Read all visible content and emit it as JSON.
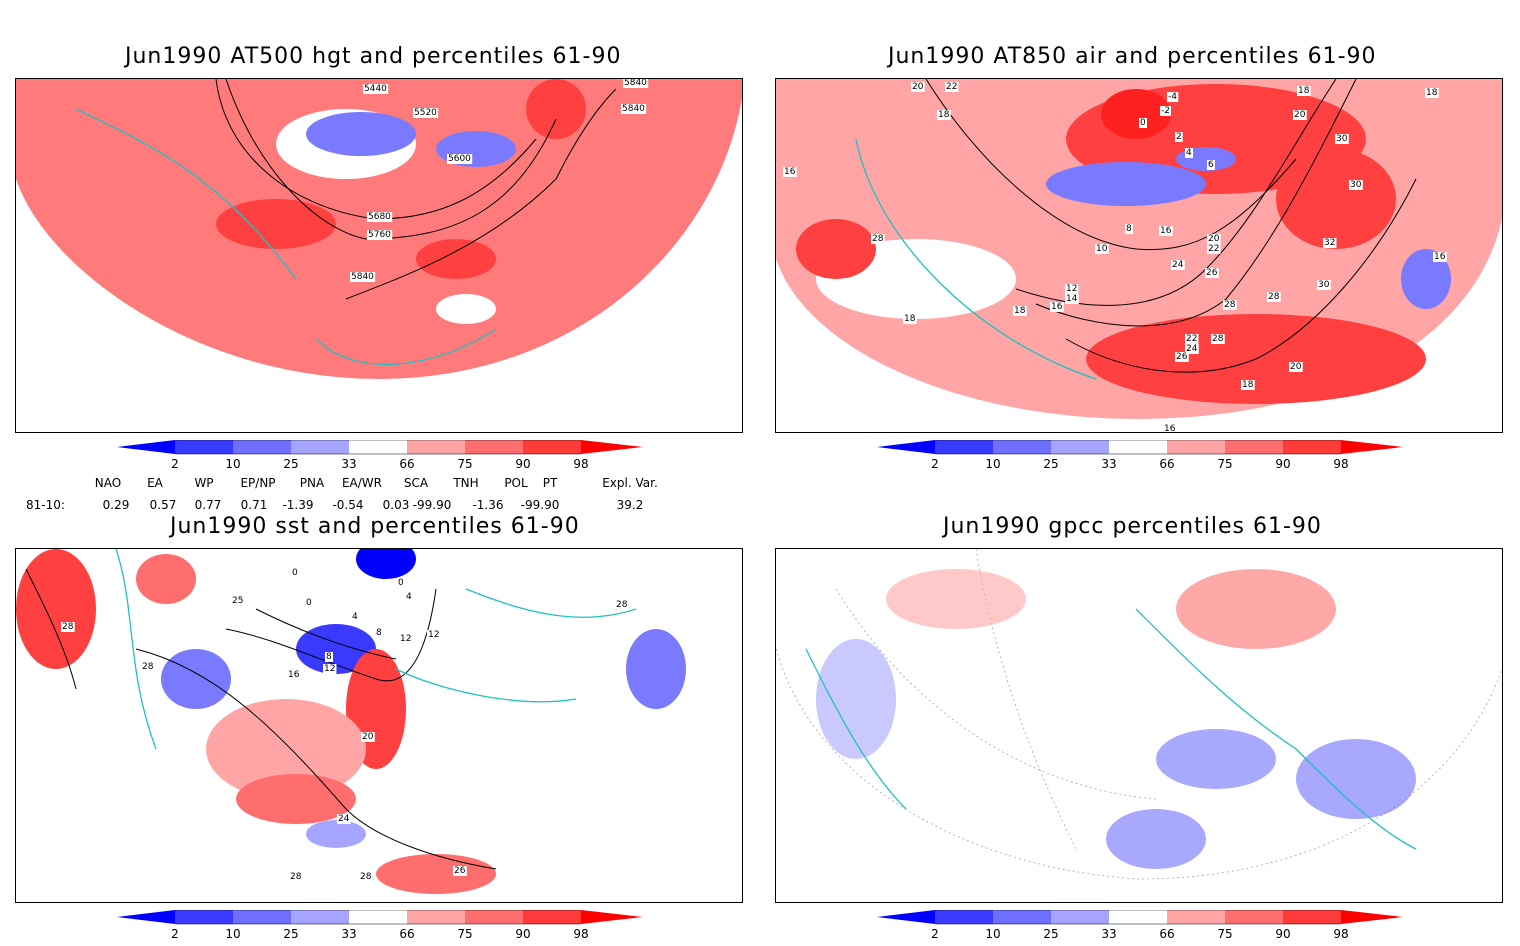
{
  "panels": [
    {
      "id": "hgt",
      "title": "Jun1990 AT500 hgt and percentiles 61-90",
      "contour_labels": [
        "5440",
        "5520",
        "5600",
        "5680",
        "5760",
        "5840",
        "5840",
        "5840"
      ]
    },
    {
      "id": "air",
      "title": "Jun1990 AT850 air and percentiles 61-90",
      "contour_labels": [
        "20",
        "22",
        "18",
        "16",
        "-4",
        "-2",
        "0",
        "2",
        "4",
        "6",
        "8",
        "10",
        "12",
        "14",
        "16",
        "18",
        "20",
        "22",
        "24",
        "26",
        "28",
        "30",
        "30",
        "32",
        "28",
        "18",
        "16",
        "18",
        "16",
        "18",
        "20",
        "22",
        "24",
        "26",
        "28",
        "30",
        "28",
        "20",
        "18",
        "16"
      ]
    },
    {
      "id": "sst",
      "title": "Jun1990 sst and percentiles 61-90",
      "contour_labels": [
        "28",
        "25",
        "0",
        "0",
        "0",
        "4",
        "4",
        "8",
        "12",
        "16",
        "8",
        "12",
        "12",
        "20",
        "28",
        "28",
        "24",
        "28",
        "28",
        "26"
      ]
    },
    {
      "id": "gpcc",
      "title": "Jun1990 gpcc percentiles 61-90",
      "contour_labels": []
    }
  ],
  "colorbar": {
    "ticks": [
      "2",
      "10",
      "25",
      "33",
      "66",
      "75",
      "90",
      "98"
    ],
    "colors": {
      "b98": "#0000ff",
      "b90": "#3a3aff",
      "b75": "#6e6eff",
      "b66": "#a5a5ff",
      "white": "#ffffff",
      "r66": "#ffa5a5",
      "r75": "#ff6e6e",
      "r90": "#ff3a3a",
      "r98": "#ff0000"
    }
  },
  "indices": {
    "headers": [
      "NAO",
      "EA",
      "WP",
      "EP/NP",
      "PNA",
      "EA/WR",
      "SCA",
      "TNH",
      "POL",
      "PT",
      "Expl. Var."
    ],
    "row_label": "81-10:",
    "values": [
      "0.29",
      "0.57",
      "0.77",
      "0.71",
      "-1.39",
      "-0.54",
      "0.03",
      "-99.90",
      "-1.36",
      "-99.90",
      "39.2"
    ]
  },
  "colors": {
    "coast": "#20c0c0",
    "contour": "#000000",
    "grid": "#999999"
  }
}
